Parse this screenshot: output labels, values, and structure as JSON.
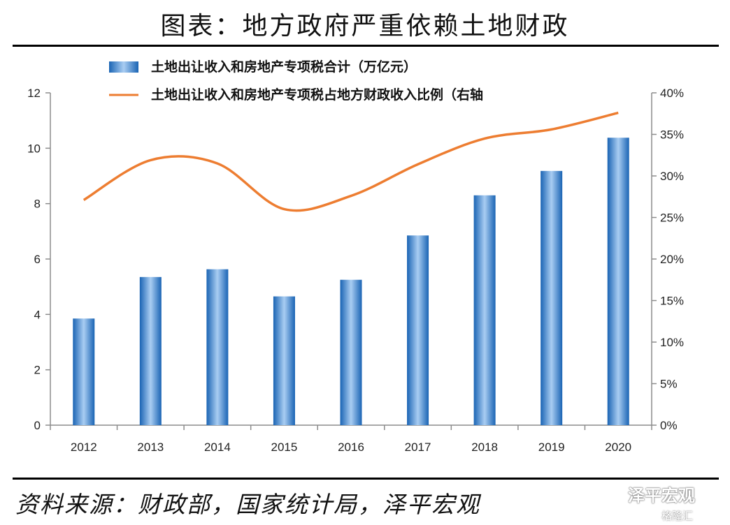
{
  "title": "图表：地方政府严重依赖土地财政",
  "source": "资料来源：财政部，国家统计局，泽平宏观",
  "brand": "泽平宏观",
  "watermark": "格隆汇",
  "chart_data": {
    "type": "bar",
    "categories": [
      "2012",
      "2013",
      "2014",
      "2015",
      "2016",
      "2017",
      "2018",
      "2019",
      "2020"
    ],
    "series": [
      {
        "name": "土地出让收入和房地产专项税合计（万亿元）",
        "type": "bar",
        "axis": "left",
        "values": [
          3.85,
          5.35,
          5.63,
          4.65,
          5.25,
          6.85,
          8.3,
          9.18,
          10.38
        ]
      },
      {
        "name": "土地出让收入和房地产专项税占地方财政收入比例（右轴",
        "type": "line",
        "axis": "right",
        "values": [
          27.1,
          31.9,
          31.5,
          26.0,
          27.6,
          31.4,
          34.5,
          35.6,
          37.6
        ]
      }
    ],
    "y_left": {
      "min": 0,
      "max": 12,
      "ticks": [
        "0",
        "2",
        "4",
        "6",
        "8",
        "10",
        "12"
      ]
    },
    "y_right": {
      "min": 0,
      "max": 40,
      "ticks": [
        "0%",
        "5%",
        "10%",
        "15%",
        "20%",
        "25%",
        "30%",
        "35%",
        "40%"
      ]
    },
    "legend_position": "top-left",
    "grid": false,
    "colors": {
      "bar_dark": "#1a64b4",
      "bar_light": "#a9cdf2",
      "line": "#ed7d31",
      "axis": "#8c8c8c"
    }
  }
}
